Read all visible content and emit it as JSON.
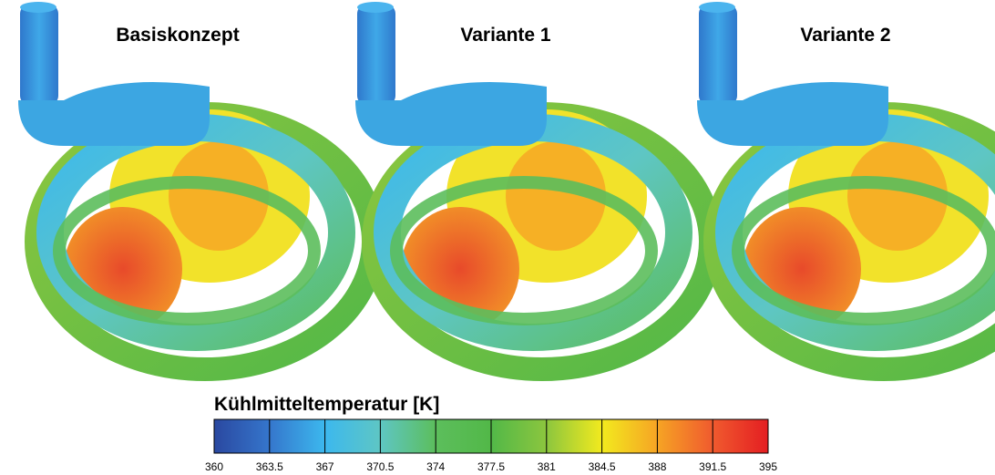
{
  "panels": [
    {
      "title": "Basiskonzept"
    },
    {
      "title": "Variante 1"
    },
    {
      "title": "Variante 2"
    }
  ],
  "colorbar": {
    "label": "Kühlmitteltemperatur [K]",
    "lim": [
      360,
      395
    ],
    "ticks": [
      360,
      363.5,
      367,
      370.5,
      374,
      377.5,
      381,
      384.5,
      388,
      391.5,
      395
    ],
    "colors": [
      "#2a48a0",
      "#3576cc",
      "#3cb8ee",
      "#5ec6c4",
      "#5cbe5c",
      "#52b848",
      "#8cc63e",
      "#f2ea1e",
      "#f6a424",
      "#f05a2e",
      "#e41e22"
    ]
  }
}
